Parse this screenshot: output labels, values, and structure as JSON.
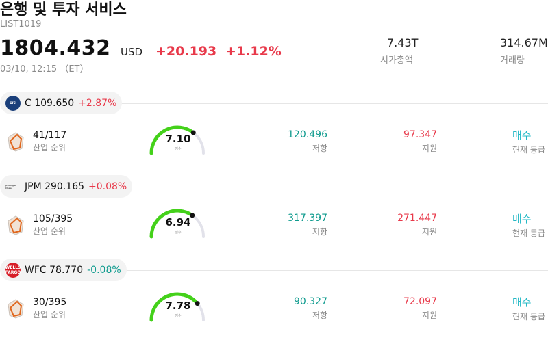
{
  "header": {
    "title": "은행 및 투자 서비스",
    "code": "LIST1019",
    "price": "1804.432",
    "currency": "USD",
    "change": "+20.193",
    "change_pct": "+1.12%",
    "timestamp": "03/10, 12:15 （ET）"
  },
  "stats": [
    {
      "value": "7.43T",
      "label": "시가총액"
    },
    {
      "value": "314.67M",
      "label": "거래량"
    }
  ],
  "stocks": [
    {
      "ticker": "C",
      "price": "109.650",
      "change": "+2.87%",
      "direction": "up",
      "logo_text": "citi",
      "logo_color": "#1a3f7a",
      "rank": "41/117",
      "rank_label": "산업 순위",
      "score": "7.10",
      "score_fraction": 0.71,
      "score_label": "점수",
      "resistance": "120.496",
      "resistance_label": "저항",
      "support": "97.347",
      "support_label": "지원",
      "rating": "매수",
      "rating_label": "현재 등급"
    },
    {
      "ticker": "JPM",
      "price": "290.165",
      "change": "+0.08%",
      "direction": "up",
      "logo_text": "JPMorgan Chase",
      "logo_color": "#f3f3f3",
      "rank": "105/395",
      "rank_label": "산업 순위",
      "score": "6.94",
      "score_fraction": 0.694,
      "score_label": "점수",
      "resistance": "317.397",
      "resistance_label": "저항",
      "support": "271.447",
      "support_label": "지원",
      "rating": "매수",
      "rating_label": "현재 등급"
    },
    {
      "ticker": "WFC",
      "price": "78.770",
      "change": "-0.08%",
      "direction": "down",
      "logo_text": "WELLS FARGO",
      "logo_color": "#d71e28",
      "rank": "30/395",
      "rank_label": "산업 순위",
      "score": "7.78",
      "score_fraction": 0.778,
      "score_label": "점수",
      "resistance": "90.327",
      "resistance_label": "저항",
      "support": "72.097",
      "support_label": "지원",
      "rating": "매수",
      "rating_label": "현재 등급"
    }
  ],
  "colors": {
    "up": "#e8394a",
    "down": "#0f9b8e",
    "gauge_fill": "#44d11a",
    "gauge_track": "#e2e2ea",
    "rating": "#23b8c5"
  }
}
